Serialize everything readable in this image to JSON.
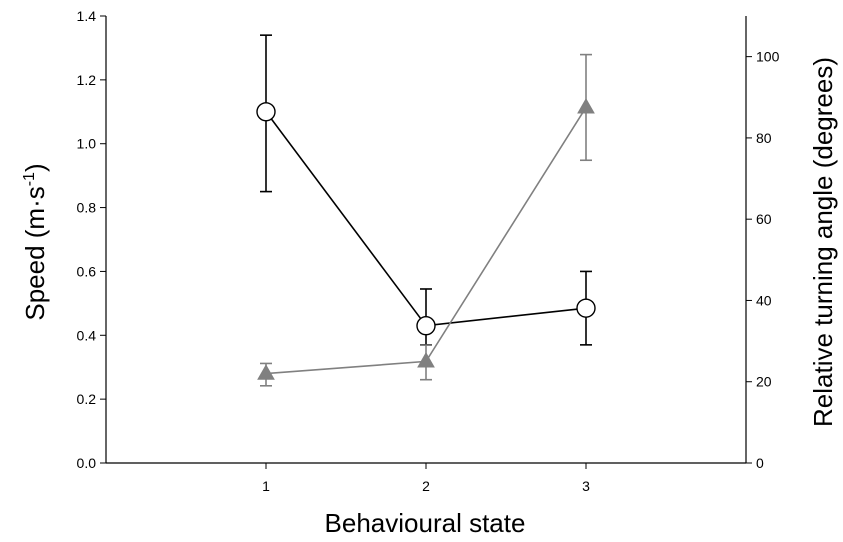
{
  "chart_data": {
    "type": "line",
    "title": "",
    "xlabel": "Behavioural state",
    "ylabel_left": "Speed (m·s",
    "ylabel_left_sup": "-1",
    "ylabel_left_close": ")",
    "ylabel_right": "Relative turning angle (degrees)",
    "categories": [
      "1",
      "2",
      "3"
    ],
    "x": [
      1,
      2,
      3
    ],
    "xlim": [
      0,
      4
    ],
    "ylim_left": [
      0,
      1.4
    ],
    "ylim_right": [
      0,
      110
    ],
    "yticks_left": [
      "0.0",
      "0.2",
      "0.4",
      "0.6",
      "0.8",
      "1.0",
      "1.2",
      "1.4"
    ],
    "yticks_right": [
      "0",
      "20",
      "40",
      "60",
      "80",
      "100"
    ],
    "grid": false,
    "series": [
      {
        "axis": "left",
        "marker": "open-circle",
        "color": "#000000",
        "values": [
          1.1,
          0.43,
          0.485
        ],
        "err_lower": [
          0.85,
          0.37,
          0.37
        ],
        "err_upper": [
          1.34,
          0.545,
          0.6
        ]
      },
      {
        "axis": "right",
        "marker": "filled-triangle",
        "color": "#808080",
        "values": [
          22,
          25,
          87.5
        ],
        "err_lower": [
          19,
          20.5,
          74.5
        ],
        "err_upper": [
          24.5,
          29,
          100.5
        ]
      }
    ]
  }
}
